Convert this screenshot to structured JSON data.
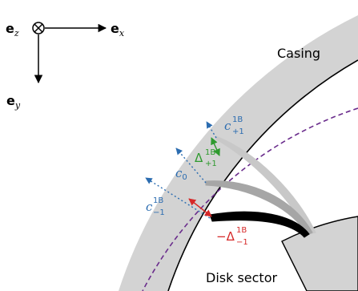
{
  "axes": {
    "ez": {
      "symbol": "e",
      "sub": "z"
    },
    "ex": {
      "symbol": "e",
      "sub": "x"
    },
    "ey": {
      "symbol": "e",
      "sub": "y"
    }
  },
  "labels": {
    "casing": "Casing",
    "disk_sector": "Disk sector",
    "c0": {
      "symbol": "c",
      "sub": "0"
    },
    "c_plus": {
      "symbol": "c",
      "sup": "1B",
      "sub": "+1"
    },
    "c_minus": {
      "symbol": "c",
      "sup": "1B",
      "sub": "−1"
    },
    "delta_plus": {
      "symbol": "Δ",
      "sup": "1B",
      "sub": "+1"
    },
    "delta_minus": {
      "prefix": "−",
      "symbol": "Δ",
      "sup": "1B",
      "sub": "−1"
    }
  },
  "colors": {
    "casing_fill": "#d3d3d3",
    "disk_fill": "#d3d3d3",
    "outline": "#000000",
    "dashed_circle": "#6a2c8c",
    "clearance_blue": "#2b6cb0",
    "delta_green": "#2e9a2e",
    "delta_red": "#d62828",
    "blade_light": "#c8c8c8",
    "blade_mid": "#a6a6a6",
    "blade_dark": "#000000"
  }
}
